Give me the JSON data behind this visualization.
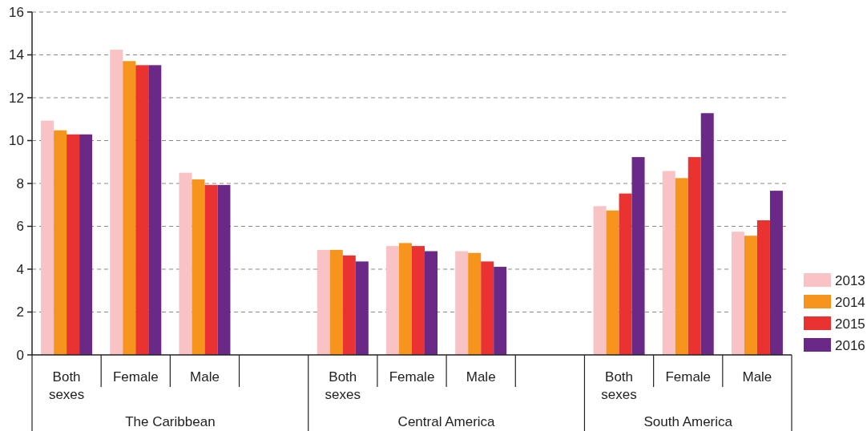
{
  "chart_data": {
    "type": "bar",
    "categories": [
      "Both sexes",
      "Female",
      "Male",
      null,
      "Both sexes",
      "Female",
      "Male",
      null,
      "Both sexes",
      "Female",
      "Male"
    ],
    "series": [
      {
        "name": "2013",
        "color": "#f9c2c5",
        "values": [
          10.93,
          14.24,
          8.5,
          null,
          4.9,
          5.08,
          4.84,
          null,
          6.94,
          8.58,
          5.75
        ]
      },
      {
        "name": "2014",
        "color": "#f7941e",
        "values": [
          10.48,
          13.71,
          8.19,
          null,
          4.9,
          5.22,
          4.76,
          null,
          6.74,
          8.25,
          5.56
        ]
      },
      {
        "name": "2015",
        "color": "#ea3330",
        "values": [
          10.29,
          13.52,
          7.93,
          null,
          4.64,
          5.08,
          4.36,
          null,
          7.53,
          9.23,
          6.28
        ]
      },
      {
        "name": "2016",
        "color": "#6a2887",
        "values": [
          10.29,
          13.52,
          7.93,
          null,
          4.36,
          4.84,
          4.11,
          null,
          9.23,
          11.28,
          7.66
        ]
      }
    ],
    "ylim": [
      0,
      16
    ],
    "yticks": [
      0,
      2,
      4,
      6,
      8,
      10,
      12,
      14,
      16
    ],
    "grid": "y",
    "legend": "bottom right",
    "annotations": [
      "The Caribbean",
      "Central America",
      "South America"
    ]
  }
}
